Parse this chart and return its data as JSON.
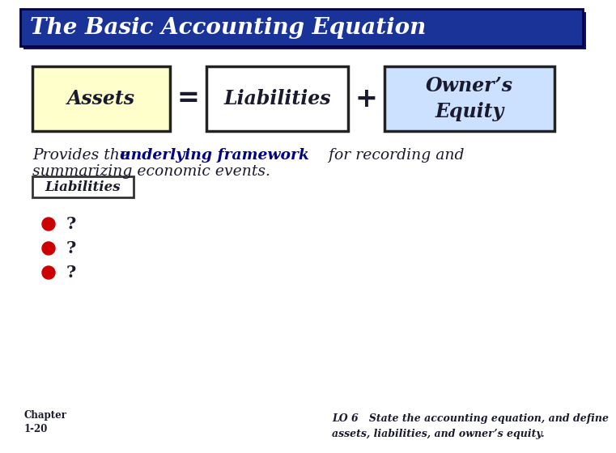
{
  "title": "The Basic Accounting Equation",
  "title_bg": "#1a3399",
  "title_color": "#ffffff",
  "title_font_size": 20,
  "bg_color": "#ffffff",
  "box1_label": "Assets",
  "box1_bg": "#ffffcc",
  "box2_label": "Liabilities",
  "box2_bg": "#ffffff",
  "box3_label": "Owner’s\nEquity",
  "box3_bg": "#cce0ff",
  "eq_sign": "=",
  "plus_sign": "+",
  "body_text_part1": "Provides the ",
  "body_text_bold": "underlying framework",
  "body_text_part2": " for recording and",
  "body_text_line2": "summarizing economic events.",
  "liabilities_label": "Liabilities",
  "bullet_color": "#cc0000",
  "bullet_qs": [
    "?",
    "?",
    "?"
  ],
  "chapter_text": "Chapter\n1-20",
  "lo_text": "LO 6   State the accounting equation, and define\nassets, liabilities, and owner’s equity.",
  "dark_text": "#1a1a2e",
  "navy_text": "#00008B",
  "shadow_color": "#111166"
}
